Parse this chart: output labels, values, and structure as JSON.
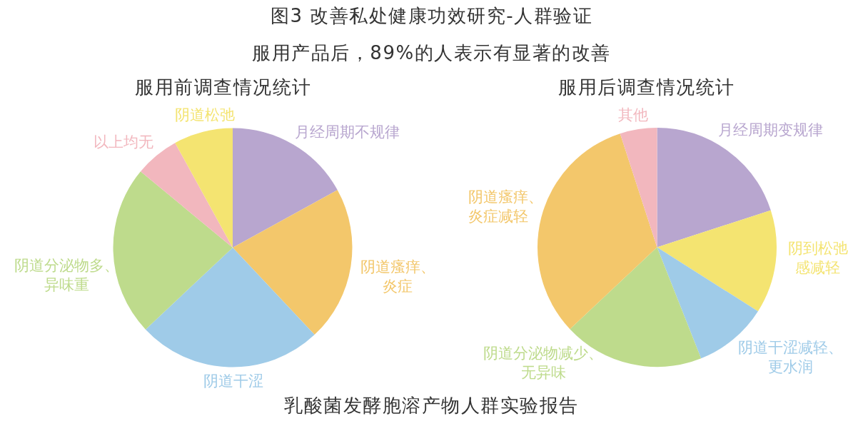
{
  "chart_data": [
    {
      "type": "other",
      "title": "图3 改善私处健康功效研究-人群验证",
      "subtitle": "服用产品后，89%的人表示有显著的改善"
    },
    {
      "type": "pie",
      "title": "服用前调查情况统计",
      "categories": [
        "月经周期不规律",
        "阴道瘙痒、炎症",
        "阴道干涩",
        "阴道分泌物多、异味重",
        "以上均无",
        "阴道松弛"
      ],
      "values": [
        17,
        21,
        25,
        23,
        6,
        8
      ],
      "colors": [
        "#b8a6cf",
        "#f3c76b",
        "#9fcbe8",
        "#bedb8c",
        "#f2b7be",
        "#f4e471"
      ]
    },
    {
      "type": "pie",
      "title": "服用后调查情况统计",
      "categories": [
        "月经周期变规律",
        "阴到松弛感减轻",
        "阴道干涩减轻、更水润",
        "阴道分泌物减少、无异味",
        "阴道瘙痒、炎症减轻",
        "其他"
      ],
      "values": [
        20,
        14,
        10,
        19,
        32,
        5
      ],
      "colors": [
        "#b8a6cf",
        "#f4e471",
        "#9fcbe8",
        "#bedb8c",
        "#f3c76b",
        "#f2b7be"
      ]
    },
    {
      "type": "other",
      "annotations": [
        "乳酸菌发酵胞溶产物人群实验报告"
      ]
    }
  ]
}
